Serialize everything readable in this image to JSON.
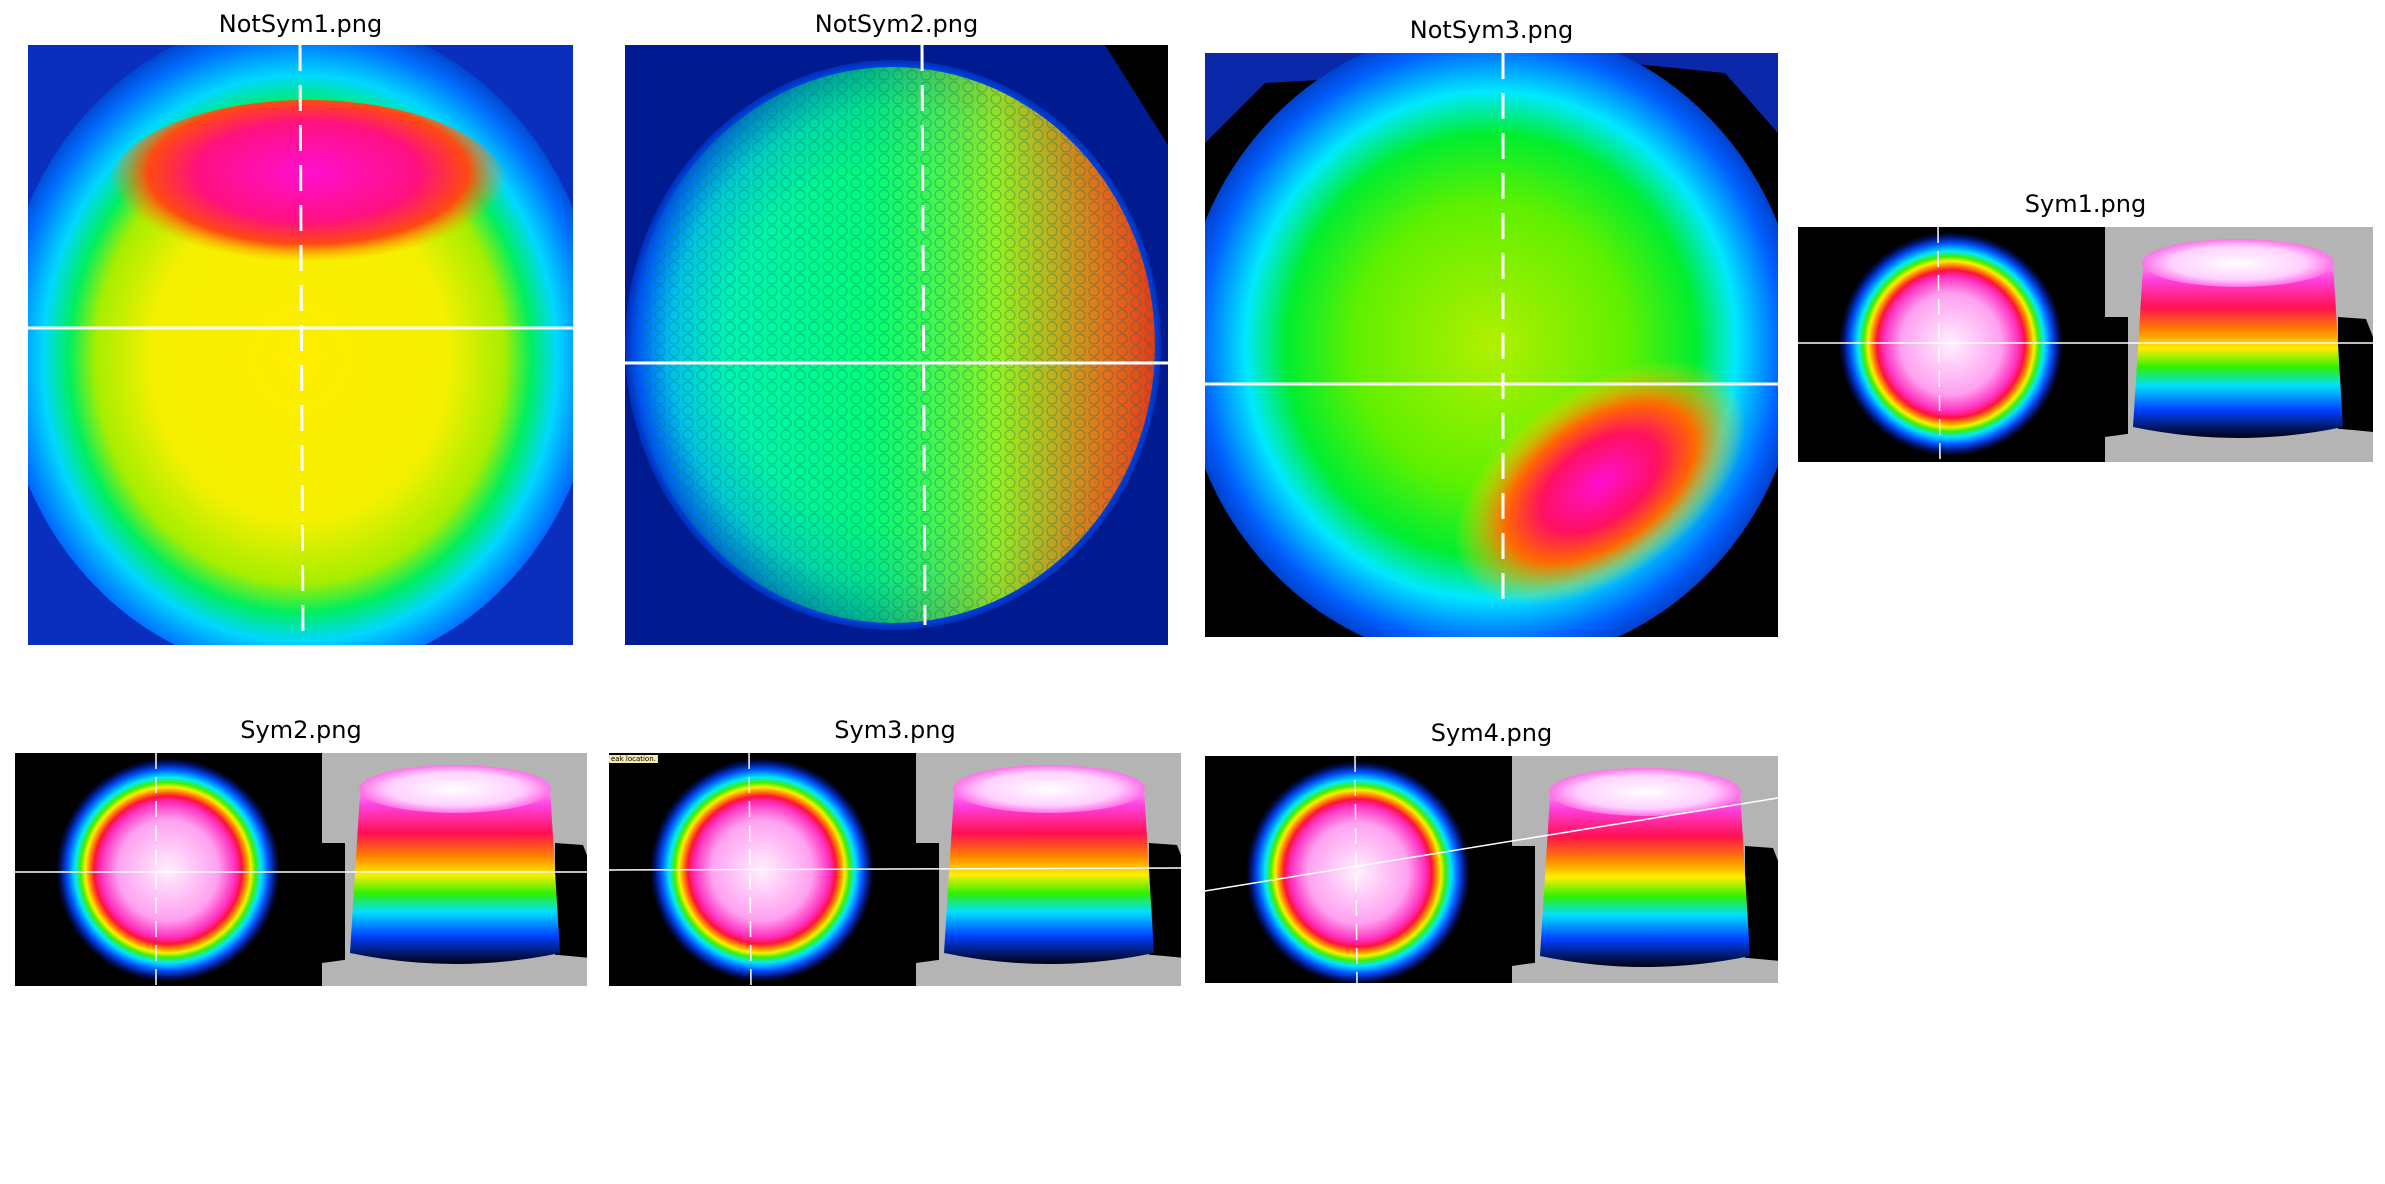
{
  "panels": [
    {
      "title": "NotSym1.png"
    },
    {
      "title": "NotSym2.png"
    },
    {
      "title": "NotSym3.png"
    },
    {
      "title": "Sym1.png"
    },
    {
      "title": "Sym2.png"
    },
    {
      "title": "Sym3.png"
    },
    {
      "title": "Sym4.png"
    }
  ],
  "sym3_tag": "eak location."
}
